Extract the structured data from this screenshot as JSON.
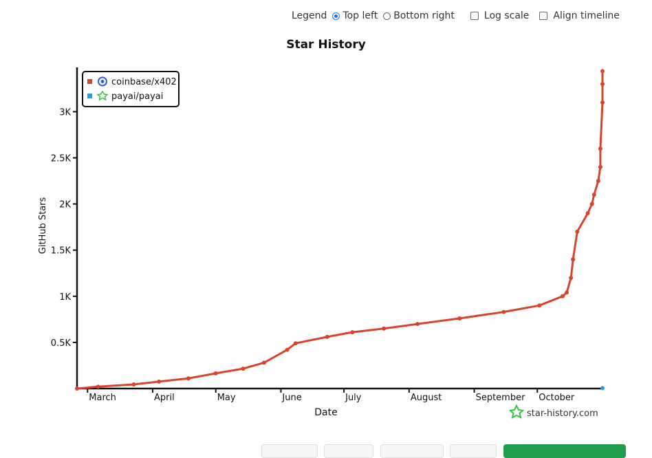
{
  "controls": {
    "legend_label": "Legend",
    "options": [
      "Top left",
      "Bottom right"
    ],
    "selected": "Top left",
    "log_scale_label": "Log scale",
    "align_timeline_label": "Align timeline"
  },
  "watermark": "star-history.com",
  "colors": {
    "series1": "#d8432e",
    "series2": "#2a9cd6",
    "brand_icon": "#36c23d",
    "radio_accent": "#1a73e8",
    "button_primary": "#1f9d4d"
  },
  "chart_data": {
    "type": "line",
    "title": "Star History",
    "xlabel": "Date",
    "ylabel": "GitHub Stars",
    "y_ticks": [
      "0.5K",
      "1K",
      "1.5K",
      "2K",
      "2.5K",
      "3K"
    ],
    "y_tick_values": [
      500,
      1000,
      1500,
      2000,
      2500,
      3000
    ],
    "x_ticks": [
      "March",
      "April",
      "May",
      "June",
      "July",
      "August",
      "September",
      "October"
    ],
    "x_tick_dates": [
      "2025-03-01",
      "2025-04-01",
      "2025-05-01",
      "2025-06-01",
      "2025-07-01",
      "2025-08-01",
      "2025-09-01",
      "2025-10-01"
    ],
    "ylim": [
      0,
      3480
    ],
    "xlim": [
      "2025-02-24",
      "2025-11-01"
    ],
    "legend_position": "top-left",
    "grid": false,
    "series": [
      {
        "name": "coinbase/x402",
        "icon": "coinbase-logo",
        "points": [
          [
            "2025-02-24",
            0
          ],
          [
            "2025-03-06",
            20
          ],
          [
            "2025-03-23",
            45
          ],
          [
            "2025-04-04",
            75
          ],
          [
            "2025-04-18",
            110
          ],
          [
            "2025-05-01",
            165
          ],
          [
            "2025-05-14",
            215
          ],
          [
            "2025-05-24",
            280
          ],
          [
            "2025-06-04",
            420
          ],
          [
            "2025-06-08",
            490
          ],
          [
            "2025-06-23",
            560
          ],
          [
            "2025-07-05",
            610
          ],
          [
            "2025-07-20",
            650
          ],
          [
            "2025-08-05",
            700
          ],
          [
            "2025-08-25",
            760
          ],
          [
            "2025-09-15",
            830
          ],
          [
            "2025-10-02",
            900
          ],
          [
            "2025-10-13",
            1000
          ],
          [
            "2025-10-15",
            1040
          ],
          [
            "2025-10-17",
            1200
          ],
          [
            "2025-10-18",
            1400
          ],
          [
            "2025-10-20",
            1700
          ],
          [
            "2025-10-25",
            1900
          ],
          [
            "2025-10-27",
            2000
          ],
          [
            "2025-10-28",
            2100
          ],
          [
            "2025-10-30",
            2250
          ],
          [
            "2025-10-31",
            2400
          ],
          [
            "2025-10-31",
            2600
          ],
          [
            "2025-11-01",
            3100
          ],
          [
            "2025-11-01",
            3300
          ],
          [
            "2025-11-01",
            3440
          ]
        ]
      },
      {
        "name": "payai/payai",
        "icon": "payai-logo",
        "points": [
          [
            "2025-11-01",
            5
          ]
        ]
      }
    ]
  }
}
